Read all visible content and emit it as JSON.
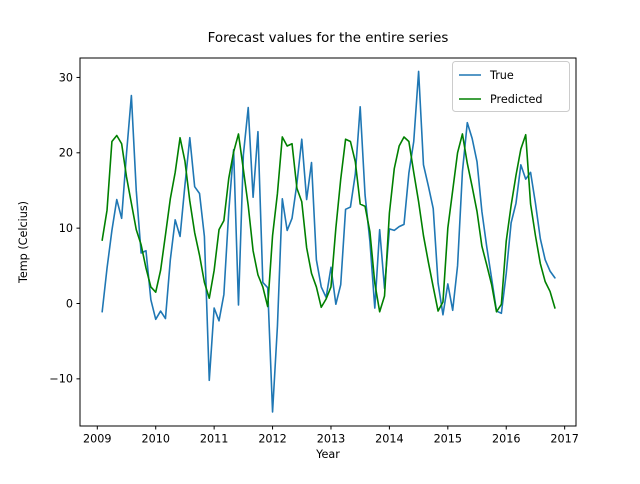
{
  "title": "Forecast values for the entire series",
  "axes": {
    "xlabel": "Year",
    "ylabel": "Temp (Celcius)",
    "x_ticks": [
      2009,
      2010,
      2011,
      2012,
      2013,
      2014,
      2015,
      2016,
      2017
    ],
    "y_ticks": [
      {
        "v": -10,
        "label": "−10"
      },
      {
        "v": 0,
        "label": "0"
      },
      {
        "v": 10,
        "label": "10"
      },
      {
        "v": 20,
        "label": "20"
      },
      {
        "v": 30,
        "label": "30"
      }
    ]
  },
  "legend": {
    "position": "upper right",
    "entries": [
      {
        "label": "True",
        "color": "#1f77b4"
      },
      {
        "label": "Predicted",
        "color": "#008000"
      }
    ]
  },
  "chart_data": {
    "type": "line",
    "title": "Forecast values for the entire series",
    "xlabel": "Year",
    "ylabel": "Temp (Celcius)",
    "frequency": "monthly",
    "x_start": "2009-02",
    "x_end": "2016-11",
    "xlim": [
      2008.7,
      2017.2
    ],
    "ylim": [
      -16.3,
      32.6
    ],
    "grid": false,
    "legend_position": "upper right",
    "series": [
      {
        "name": "True",
        "color": "#1f77b4",
        "values": [
          -1.1,
          4.7,
          9.7,
          13.8,
          11.3,
          19.9,
          27.6,
          15.0,
          6.7,
          7.0,
          0.5,
          -2.1,
          -1.0,
          -2.0,
          5.8,
          11.1,
          8.9,
          15.7,
          22.0,
          15.5,
          14.6,
          8.9,
          -10.2,
          -0.6,
          -2.3,
          1.2,
          12.2,
          20.4,
          -0.2,
          19.7,
          26.0,
          14.1,
          22.8,
          2.8,
          2.1,
          -14.4,
          -3.0,
          13.9,
          9.7,
          11.3,
          15.9,
          21.8,
          13.8,
          18.7,
          5.8,
          2.2,
          0.8,
          4.8,
          -0.1,
          2.5,
          12.5,
          12.8,
          17.2,
          26.1,
          14.4,
          8.2,
          -0.6,
          9.8,
          2.0,
          9.9,
          9.7,
          10.2,
          10.5,
          17.3,
          21.5,
          30.8,
          18.4,
          15.6,
          12.6,
          2.7,
          -1.5,
          2.6,
          -0.9,
          5.0,
          17.5,
          24.0,
          21.9,
          18.8,
          12.2,
          7.5,
          3.3,
          -1.0,
          -1.3,
          4.0,
          10.7,
          13.3,
          18.4,
          16.5,
          17.4,
          13.3,
          8.6,
          5.8,
          4.3,
          3.4
        ]
      },
      {
        "name": "Predicted",
        "color": "#008000",
        "values": [
          8.4,
          12.4,
          21.5,
          22.3,
          21.2,
          16.8,
          13.3,
          9.8,
          7.8,
          4.7,
          2.2,
          1.5,
          4.4,
          9.1,
          13.9,
          17.4,
          22.0,
          18.9,
          13.6,
          9.4,
          6.4,
          2.8,
          0.7,
          4.4,
          9.8,
          11.0,
          16.6,
          20.1,
          22.5,
          17.8,
          13.0,
          7.0,
          3.8,
          2.2,
          -0.4,
          9.0,
          14.6,
          22.1,
          20.9,
          21.2,
          15.3,
          13.5,
          7.4,
          4.0,
          2.2,
          -0.5,
          0.6,
          2.2,
          10.0,
          16.5,
          21.8,
          21.5,
          18.8,
          13.2,
          12.9,
          9.5,
          2.7,
          -1.1,
          1.0,
          12.0,
          17.9,
          20.9,
          22.1,
          21.5,
          17.4,
          13.5,
          9.0,
          5.5,
          2.2,
          -1.0,
          0.2,
          10.0,
          15.0,
          20.0,
          22.5,
          18.6,
          15.5,
          12.2,
          7.6,
          5.1,
          2.5,
          -1.1,
          -0.1,
          8.3,
          13.0,
          17.0,
          20.5,
          22.4,
          13.2,
          9.0,
          5.3,
          2.9,
          1.6,
          -0.6
        ]
      }
    ]
  }
}
